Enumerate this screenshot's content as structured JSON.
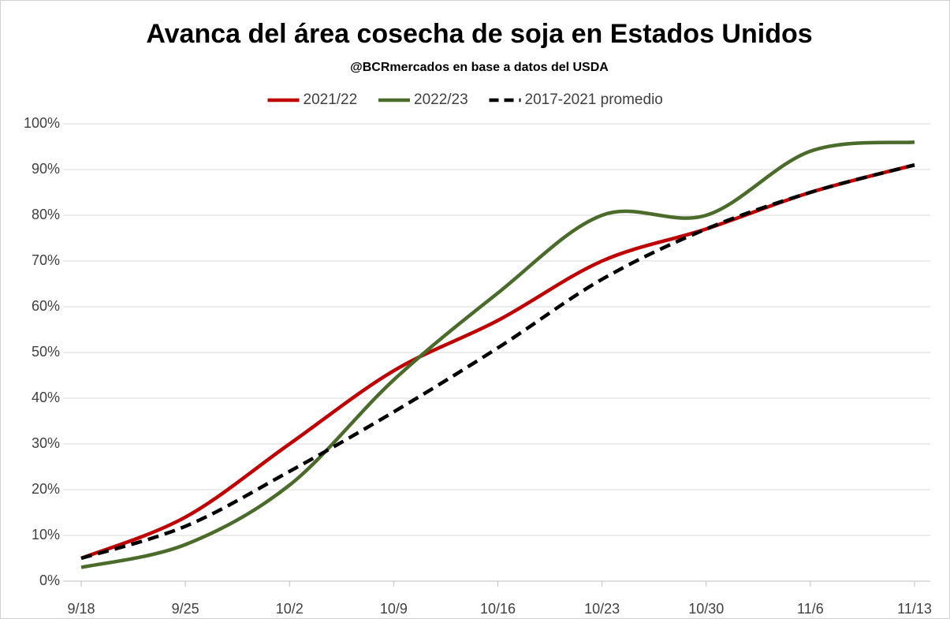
{
  "chart_data": {
    "type": "line",
    "title": "Avanca del área cosecha de soja en Estados Unidos",
    "subtitle": "@BCRmercados  en base a datos del USDA",
    "categories": [
      "9/18",
      "9/25",
      "10/2",
      "10/9",
      "10/16",
      "10/23",
      "10/30",
      "11/6",
      "11/13"
    ],
    "series": [
      {
        "name": "2021/22",
        "color": "#c00000",
        "dashed": false,
        "values": [
          5,
          14,
          30,
          46,
          57,
          70,
          77,
          85,
          91
        ]
      },
      {
        "name": "2022/23",
        "color": "#4a6b2a",
        "dashed": false,
        "values": [
          3,
          8,
          21,
          44,
          63,
          80,
          80,
          94,
          96
        ]
      },
      {
        "name": "2017-2021 promedio",
        "color": "#000000",
        "dashed": true,
        "values": [
          5,
          12,
          24,
          37,
          51,
          66,
          77,
          85,
          91
        ]
      }
    ],
    "ylim": [
      0,
      100
    ],
    "yticks": [
      {
        "value": 0,
        "label": "0%"
      },
      {
        "value": 10,
        "label": "10%"
      },
      {
        "value": 20,
        "label": "20%"
      },
      {
        "value": 30,
        "label": "30%"
      },
      {
        "value": 40,
        "label": "40%"
      },
      {
        "value": 50,
        "label": "50%"
      },
      {
        "value": 60,
        "label": "60%"
      },
      {
        "value": 70,
        "label": "70%"
      },
      {
        "value": 80,
        "label": "80%"
      },
      {
        "value": 90,
        "label": "90%"
      },
      {
        "value": 100,
        "label": "100%"
      }
    ],
    "grid": true,
    "legend": "top"
  }
}
